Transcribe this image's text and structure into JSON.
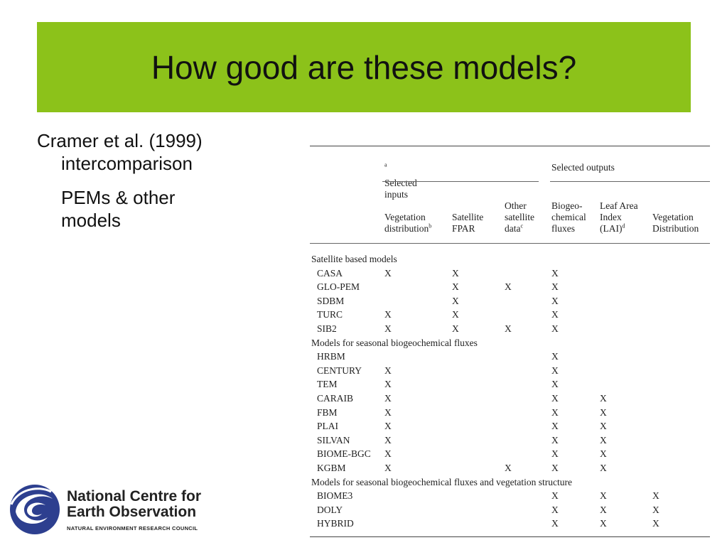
{
  "slide": {
    "title": "How good are these models?",
    "bullets": {
      "line1": "Cramer et al. (1999)",
      "line1_cont": "intercomparison",
      "sub_line1": "PEMs & other",
      "sub_line2": "models"
    }
  },
  "table": {
    "group_inputs": "Selected inputs",
    "group_inputs_sup": "a",
    "group_outputs": "Selected outputs",
    "columns": [
      {
        "lines": [
          "Vegetation",
          "distribution"
        ],
        "sup": "b"
      },
      {
        "lines": [
          "Satellite",
          "FPAR"
        ],
        "sup": ""
      },
      {
        "lines": [
          "Other",
          "satellite",
          "data"
        ],
        "sup": "c"
      },
      {
        "lines": [
          "Biogeo-",
          "chemical",
          "fluxes"
        ],
        "sup": ""
      },
      {
        "lines": [
          "Leaf Area",
          "Index",
          "(LAI)"
        ],
        "sup": "d"
      },
      {
        "lines": [
          "Vegetation",
          "Distribution"
        ],
        "sup": ""
      }
    ],
    "sections": [
      {
        "title": "Satellite based models",
        "rows": [
          {
            "model": "CASA",
            "marks": [
              "X",
              "X",
              "",
              "X",
              "",
              ""
            ]
          },
          {
            "model": "GLO-PEM",
            "marks": [
              "",
              "X",
              "X",
              "X",
              "",
              ""
            ]
          },
          {
            "model": "SDBM",
            "marks": [
              "",
              "X",
              "",
              "X",
              "",
              ""
            ]
          },
          {
            "model": "TURC",
            "marks": [
              "X",
              "X",
              "",
              "X",
              "",
              ""
            ]
          },
          {
            "model": "SIB2",
            "marks": [
              "X",
              "X",
              "X",
              "X",
              "",
              ""
            ]
          }
        ]
      },
      {
        "title": "Models for seasonal biogeochemical fluxes",
        "rows": [
          {
            "model": "HRBM",
            "marks": [
              "",
              "",
              "",
              "X",
              "",
              ""
            ]
          },
          {
            "model": "CENTURY",
            "marks": [
              "X",
              "",
              "",
              "X",
              "",
              ""
            ]
          },
          {
            "model": "TEM",
            "marks": [
              "X",
              "",
              "",
              "X",
              "",
              ""
            ]
          },
          {
            "model": "CARAIB",
            "marks": [
              "X",
              "",
              "",
              "X",
              "X",
              ""
            ]
          },
          {
            "model": "FBM",
            "marks": [
              "X",
              "",
              "",
              "X",
              "X",
              ""
            ]
          },
          {
            "model": "PLAI",
            "marks": [
              "X",
              "",
              "",
              "X",
              "X",
              ""
            ]
          },
          {
            "model": "SILVAN",
            "marks": [
              "X",
              "",
              "",
              "X",
              "X",
              ""
            ]
          },
          {
            "model": "BIOME-BGC",
            "marks": [
              "X",
              "",
              "",
              "X",
              "X",
              ""
            ]
          },
          {
            "model": "KGBM",
            "marks": [
              "X",
              "",
              "X",
              "X",
              "X",
              ""
            ]
          }
        ]
      },
      {
        "title": "Models for seasonal biogeochemical fluxes and vegetation structure",
        "rows": [
          {
            "model": "BIOME3",
            "marks": [
              "",
              "",
              "",
              "X",
              "X",
              "X"
            ]
          },
          {
            "model": "DOLY",
            "marks": [
              "",
              "",
              "",
              "X",
              "X",
              "X"
            ]
          },
          {
            "model": "HYBRID",
            "marks": [
              "",
              "",
              "",
              "X",
              "X",
              "X"
            ]
          }
        ]
      }
    ]
  },
  "logo": {
    "line1": "National Centre for",
    "line2": "Earth Observation",
    "subline": "NATURAL ENVIRONMENT RESEARCH COUNCIL",
    "brand_color": "#2d3f8f"
  },
  "colors": {
    "title_bar": "#8cc21a"
  }
}
